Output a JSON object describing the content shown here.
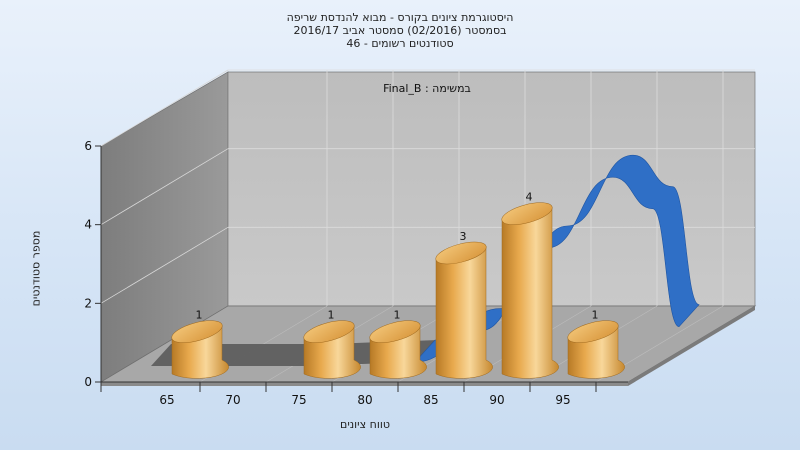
{
  "chart_data": {
    "type": "bar",
    "title_lines": [
      "היסטוגרמת ציונים בקורס - מבוא להנדסת שריפה",
      "בסמסטר  (02/2016)  סמסטר אביב 2016/17",
      "סטודנטים רשומים - 46"
    ],
    "subtitle": "במשימה : Final_B",
    "xlabel": "טווח ציונים",
    "ylabel": "מספר סטודנטים",
    "x_ticks": [
      "65",
      "70",
      "75",
      "80",
      "85",
      "90",
      "95"
    ],
    "y_ticks": [
      "0",
      "2",
      "4",
      "6"
    ],
    "ylim": [
      0,
      6
    ],
    "bins": [
      {
        "x": 65,
        "value": 1
      },
      {
        "x": 75,
        "value": 1
      },
      {
        "x": 80,
        "value": 1
      },
      {
        "x": 85,
        "value": 3
      },
      {
        "x": 90,
        "value": 4
      },
      {
        "x": 95,
        "value": 1
      }
    ],
    "curve": {
      "points": [
        {
          "x": 60,
          "y": 0
        },
        {
          "x": 72,
          "y": 0
        },
        {
          "x": 80,
          "y": 0.1
        },
        {
          "x": 85,
          "y": 0.9
        },
        {
          "x": 90,
          "y": 3.0
        },
        {
          "x": 95,
          "y": 4.8
        },
        {
          "x": 98,
          "y": 4.0
        },
        {
          "x": 100,
          "y": 1.0
        }
      ]
    },
    "colors": {
      "bar_light": "#f8d79a",
      "bar_mid": "#e8a94d",
      "bar_dark": "#b77a26",
      "curve": "#2f6fc6",
      "curve_flat": "#5a5a5a",
      "back_wall": "#bfbfbf",
      "side_wall": "#8c8c8c",
      "floor": "#a9a9a9"
    },
    "grid": true
  }
}
